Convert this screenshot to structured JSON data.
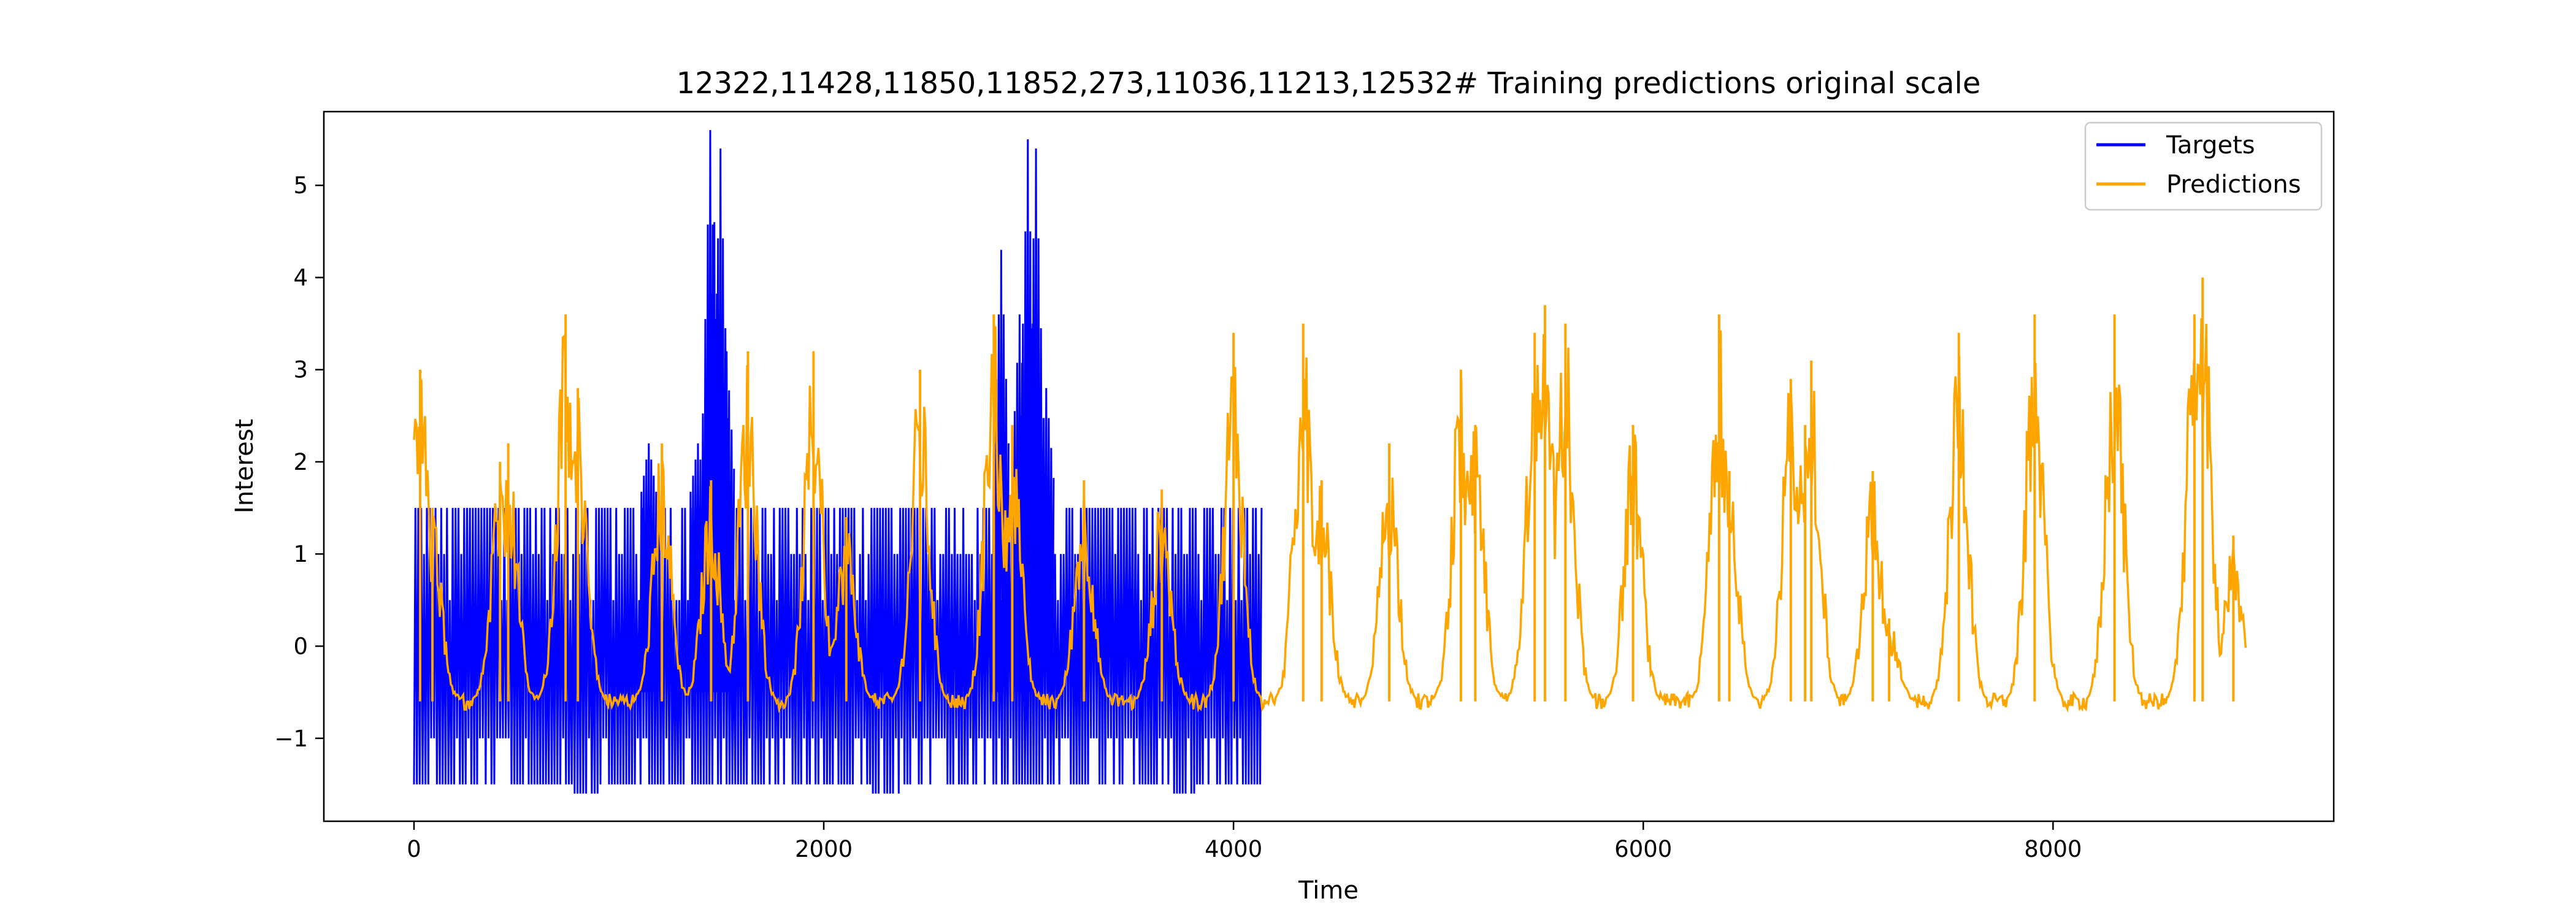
{
  "chart_data": {
    "type": "line",
    "title": "12322,11428,11850,11852,273,11036,11213,12532# Training predictions original scale",
    "xlabel": "Time",
    "ylabel": "Interest",
    "xlim": [
      -440,
      9370
    ],
    "ylim": [
      -1.9,
      5.8
    ],
    "xticks": [
      0,
      2000,
      4000,
      6000,
      8000
    ],
    "xtick_labels": [
      "0",
      "2000",
      "4000",
      "6000",
      "8000"
    ],
    "yticks": [
      -1,
      0,
      1,
      2,
      3,
      4,
      5
    ],
    "ytick_labels": [
      "−1",
      "0",
      "1",
      "2",
      "3",
      "4",
      "5"
    ],
    "grid": false,
    "legend_position": "top-right",
    "series": [
      {
        "name": "Targets",
        "color": "#0000ff",
        "style": "oscillating between -1.5 and 1.5 with short period",
        "x_range": [
          0,
          4140
        ],
        "low": -1.5,
        "high": 1.5,
        "spikes": [
          {
            "x": 1140,
            "y": 2.2
          },
          {
            "x": 1380,
            "y": 2.2
          },
          {
            "x": 1440,
            "y": 5.6
          },
          {
            "x": 1460,
            "y": 4.6
          },
          {
            "x": 1490,
            "y": 5.4
          },
          {
            "x": 1520,
            "y": 3.2
          },
          {
            "x": 2860,
            "y": 4.3
          },
          {
            "x": 2950,
            "y": 3.6
          },
          {
            "x": 2990,
            "y": 5.5
          },
          {
            "x": 3030,
            "y": 5.4
          },
          {
            "x": 3080,
            "y": 2.8
          }
        ],
        "low_dips": [
          {
            "x_start": 780,
            "x_end": 900,
            "y": -1.6
          },
          {
            "x_start": 2240,
            "x_end": 2380,
            "y": -1.6
          },
          {
            "x_start": 3700,
            "x_end": 3820,
            "y": -1.6
          }
        ]
      },
      {
        "name": "Predictions",
        "color": "#ffa500",
        "style": "baseline around -0.6 with periodic spikes",
        "x_range": [
          0,
          8940
        ],
        "baseline": -0.6,
        "peaks": [
          {
            "x": 30,
            "y": 3.0
          },
          {
            "x": 90,
            "y": 1.5
          },
          {
            "x": 420,
            "y": 2.0
          },
          {
            "x": 460,
            "y": 2.2
          },
          {
            "x": 740,
            "y": 3.6
          },
          {
            "x": 800,
            "y": 2.8
          },
          {
            "x": 1210,
            "y": 2.2
          },
          {
            "x": 1450,
            "y": 1.8
          },
          {
            "x": 1630,
            "y": 3.2
          },
          {
            "x": 1950,
            "y": 3.2
          },
          {
            "x": 2110,
            "y": 1.4
          },
          {
            "x": 2470,
            "y": 3.0
          },
          {
            "x": 2830,
            "y": 3.6
          },
          {
            "x": 2920,
            "y": 2.4
          },
          {
            "x": 3270,
            "y": 1.8
          },
          {
            "x": 3650,
            "y": 1.7
          },
          {
            "x": 4000,
            "y": 3.4
          },
          {
            "x": 4340,
            "y": 3.5
          },
          {
            "x": 4430,
            "y": 1.8
          },
          {
            "x": 4760,
            "y": 2.2
          },
          {
            "x": 5110,
            "y": 3.0
          },
          {
            "x": 5180,
            "y": 2.4
          },
          {
            "x": 5470,
            "y": 3.4
          },
          {
            "x": 5520,
            "y": 3.7
          },
          {
            "x": 5620,
            "y": 3.5
          },
          {
            "x": 5950,
            "y": 2.4
          },
          {
            "x": 6370,
            "y": 3.6
          },
          {
            "x": 6420,
            "y": 1.9
          },
          {
            "x": 6720,
            "y": 2.9
          },
          {
            "x": 6790,
            "y": 2.4
          },
          {
            "x": 6820,
            "y": 3.1
          },
          {
            "x": 7120,
            "y": 1.9
          },
          {
            "x": 7200,
            "y": 0.3
          },
          {
            "x": 7540,
            "y": 3.4
          },
          {
            "x": 7910,
            "y": 3.6
          },
          {
            "x": 8300,
            "y": 3.6
          },
          {
            "x": 8690,
            "y": 3.6
          },
          {
            "x": 8730,
            "y": 4.0
          },
          {
            "x": 8880,
            "y": 1.2
          }
        ]
      }
    ]
  }
}
